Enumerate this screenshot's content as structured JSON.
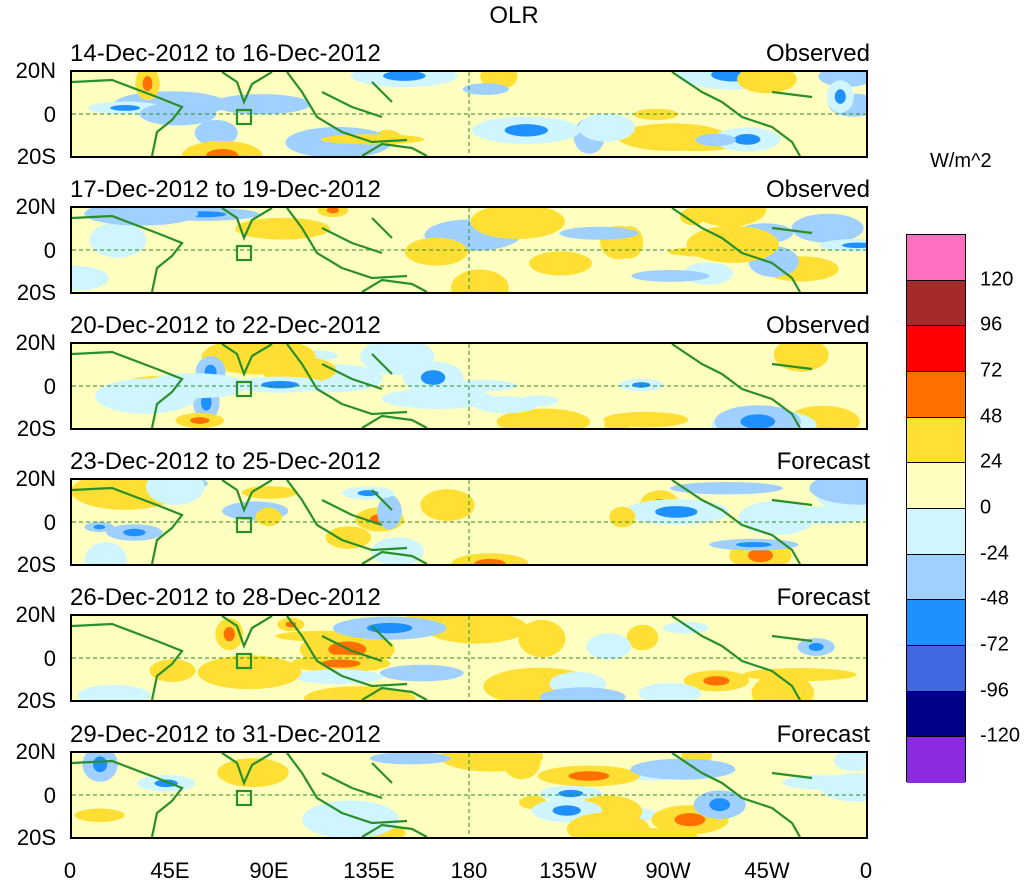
{
  "title": "OLR",
  "units": "W/m^2",
  "lat_labels": [
    "20N",
    "0",
    "20S"
  ],
  "lon_labels": [
    "0",
    "45E",
    "90E",
    "135E",
    "180",
    "135W",
    "90W",
    "45W",
    "0"
  ],
  "panels": [
    {
      "date": "14-Dec-2012 to 16-Dec-2012",
      "kind": "Observed"
    },
    {
      "date": "17-Dec-2012 to 19-Dec-2012",
      "kind": "Observed"
    },
    {
      "date": "20-Dec-2012 to 22-Dec-2012",
      "kind": "Observed"
    },
    {
      "date": "23-Dec-2012 to 25-Dec-2012",
      "kind": "Forecast"
    },
    {
      "date": "26-Dec-2012 to 28-Dec-2012",
      "kind": "Forecast"
    },
    {
      "date": "29-Dec-2012 to 31-Dec-2012",
      "kind": "Forecast"
    }
  ],
  "colorbar": {
    "colors": [
      "#ff6fbf",
      "#a52a2a",
      "#ff0000",
      "#ff7000",
      "#ffdf33",
      "#ffffc0",
      "#cff5ff",
      "#9fd0ff",
      "#1e90ff",
      "#4169e1",
      "#00008b",
      "#8a2be2"
    ],
    "labels": [
      "120",
      "96",
      "72",
      "48",
      "24",
      "0",
      "-24",
      "-48",
      "-72",
      "-96",
      "-120"
    ]
  },
  "map_colors": {
    "land": "#2a8f2a",
    "ocean": "#ffffff"
  }
}
